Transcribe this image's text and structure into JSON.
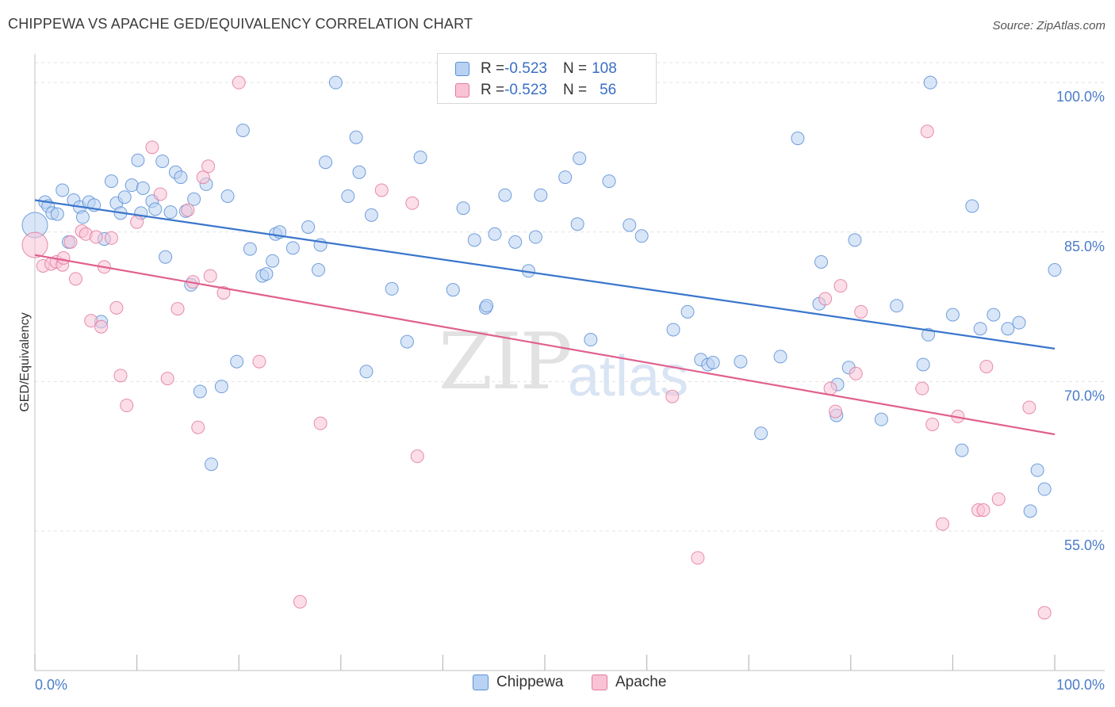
{
  "title": "CHIPPEWA VS APACHE GED/EQUIVALENCY CORRELATION CHART",
  "source": "Source: ZipAtlas.com",
  "watermark": {
    "zip": "ZIP",
    "atlas": "atlas"
  },
  "legend": {
    "rows": [
      {
        "r_label": "R = ",
        "r_value": "-0.523",
        "n_label": "N = ",
        "n_value": "108"
      },
      {
        "r_label": "R = ",
        "r_value": "-0.523",
        "n_label": "N = ",
        "n_value": "56"
      }
    ]
  },
  "colors": {
    "chippewa_fill": "#b9d2f3",
    "chippewa_stroke": "#5b8fd6",
    "chippewa_line": "#3a76cc",
    "apache_fill": "#f9c3d5",
    "apache_stroke": "#e27aa0",
    "apache_line": "#e0608e",
    "grid": "#e3e3e3",
    "axis_text": "#4a7cc9"
  },
  "chart_data": {
    "type": "scatter",
    "title": "CHIPPEWA VS APACHE GED/EQUIVALENCY CORRELATION CHART",
    "xlabel": "",
    "ylabel": "GED/Equivalency",
    "xlim": [
      0,
      100
    ],
    "ylim": [
      41,
      102
    ],
    "x_tick_labels": [
      "0.0%",
      "100.0%"
    ],
    "y_ticks": [
      55,
      70,
      85,
      100
    ],
    "y_tick_labels": [
      "55.0%",
      "70.0%",
      "85.0%",
      "100.0%"
    ],
    "grid": true,
    "legend_position": "top-center",
    "series": [
      {
        "name": "Chippewa",
        "r": -0.523,
        "n": 108,
        "trend": {
          "x": [
            0,
            100
          ],
          "y": [
            88.2,
            73.3
          ]
        },
        "points": [
          [
            0,
            85.7
          ],
          [
            1,
            88
          ],
          [
            1.3,
            87.6
          ],
          [
            1.7,
            86.9
          ],
          [
            2.2,
            86.8
          ],
          [
            2.7,
            89.2
          ],
          [
            3.3,
            84
          ],
          [
            3.8,
            88.2
          ],
          [
            4.4,
            87.5
          ],
          [
            4.7,
            86.5
          ],
          [
            5.3,
            88
          ],
          [
            5.8,
            87.7
          ],
          [
            6.5,
            76
          ],
          [
            6.8,
            84.3
          ],
          [
            7.5,
            90.1
          ],
          [
            8,
            87.9
          ],
          [
            8.4,
            86.9
          ],
          [
            8.8,
            88.5
          ],
          [
            9.5,
            89.7
          ],
          [
            10.1,
            92.2
          ],
          [
            10.4,
            86.9
          ],
          [
            10.6,
            89.4
          ],
          [
            11.5,
            88.1
          ],
          [
            11.8,
            87.3
          ],
          [
            12.5,
            92.1
          ],
          [
            12.8,
            82.5
          ],
          [
            13.3,
            87
          ],
          [
            13.8,
            91
          ],
          [
            14.3,
            90.5
          ],
          [
            14.8,
            87.1
          ],
          [
            15.3,
            79.7
          ],
          [
            15.6,
            88.3
          ],
          [
            16.2,
            69
          ],
          [
            16.8,
            89.8
          ],
          [
            17.3,
            61.7
          ],
          [
            18.3,
            69.5
          ],
          [
            18.9,
            88.6
          ],
          [
            19.8,
            72
          ],
          [
            20.4,
            95.2
          ],
          [
            21.1,
            83.3
          ],
          [
            22.3,
            80.6
          ],
          [
            22.7,
            80.8
          ],
          [
            23.3,
            82.1
          ],
          [
            23.6,
            84.8
          ],
          [
            24,
            85
          ],
          [
            25.3,
            83.4
          ],
          [
            26.8,
            85.5
          ],
          [
            27.8,
            81.2
          ],
          [
            28,
            83.7
          ],
          [
            28.5,
            92
          ],
          [
            29.5,
            100
          ],
          [
            30.7,
            88.6
          ],
          [
            31.5,
            94.5
          ],
          [
            31.8,
            91
          ],
          [
            32.5,
            71
          ],
          [
            33,
            86.7
          ],
          [
            35,
            79.3
          ],
          [
            36.5,
            74
          ],
          [
            37.8,
            92.5
          ],
          [
            41,
            79.2
          ],
          [
            42,
            87.4
          ],
          [
            43.1,
            84.2
          ],
          [
            44.2,
            77.4
          ],
          [
            44.3,
            77.6
          ],
          [
            45.1,
            84.8
          ],
          [
            46.1,
            88.7
          ],
          [
            47.1,
            84
          ],
          [
            48.4,
            81.1
          ],
          [
            49.1,
            84.5
          ],
          [
            49.6,
            88.7
          ],
          [
            52,
            90.5
          ],
          [
            53.2,
            85.8
          ],
          [
            53.4,
            92.4
          ],
          [
            54.5,
            74.2
          ],
          [
            56.3,
            90.1
          ],
          [
            58.3,
            85.7
          ],
          [
            59.5,
            84.6
          ],
          [
            62.6,
            75.2
          ],
          [
            64,
            77
          ],
          [
            65.3,
            72.2
          ],
          [
            66,
            71.7
          ],
          [
            66.5,
            71.9
          ],
          [
            69.2,
            72
          ],
          [
            71.2,
            64.8
          ],
          [
            73.1,
            72.5
          ],
          [
            74.8,
            94.4
          ],
          [
            76.9,
            77.8
          ],
          [
            77.1,
            82
          ],
          [
            78.6,
            66.6
          ],
          [
            78.7,
            69.7
          ],
          [
            79.8,
            71.4
          ],
          [
            80.4,
            84.2
          ],
          [
            83,
            66.2
          ],
          [
            84.5,
            77.6
          ],
          [
            87.1,
            71.7
          ],
          [
            87.6,
            74.7
          ],
          [
            87.8,
            100
          ],
          [
            90,
            76.7
          ],
          [
            90.9,
            63.1
          ],
          [
            91.9,
            87.6
          ],
          [
            92.7,
            75.3
          ],
          [
            94,
            76.7
          ],
          [
            95.4,
            75.3
          ],
          [
            96.5,
            75.9
          ],
          [
            97.6,
            57
          ],
          [
            98.3,
            61.1
          ],
          [
            99,
            59.2
          ],
          [
            100,
            81.2
          ]
        ]
      },
      {
        "name": "Apache",
        "r": -0.523,
        "n": 56,
        "trend": {
          "x": [
            0,
            100
          ],
          "y": [
            82.7,
            64.7
          ]
        },
        "points": [
          [
            0,
            83.7
          ],
          [
            0.8,
            81.6
          ],
          [
            1.6,
            81.8
          ],
          [
            2.1,
            82
          ],
          [
            2.7,
            81.7
          ],
          [
            2.8,
            82.4
          ],
          [
            3.5,
            84
          ],
          [
            4,
            80.3
          ],
          [
            4.6,
            85.1
          ],
          [
            5,
            84.8
          ],
          [
            5.5,
            76.1
          ],
          [
            6,
            84.5
          ],
          [
            6.5,
            75.5
          ],
          [
            6.8,
            81.5
          ],
          [
            7.5,
            84.4
          ],
          [
            8,
            77.4
          ],
          [
            8.4,
            70.6
          ],
          [
            9,
            67.6
          ],
          [
            10,
            86
          ],
          [
            11.5,
            93.5
          ],
          [
            12.3,
            88.8
          ],
          [
            13,
            70.3
          ],
          [
            14,
            77.3
          ],
          [
            15,
            87.2
          ],
          [
            15.5,
            80
          ],
          [
            16,
            65.4
          ],
          [
            16.5,
            90.5
          ],
          [
            17,
            91.6
          ],
          [
            17.2,
            80.6
          ],
          [
            18.5,
            78.9
          ],
          [
            20,
            100
          ],
          [
            22,
            72
          ],
          [
            26,
            47.9
          ],
          [
            28,
            65.8
          ],
          [
            34,
            89.2
          ],
          [
            37,
            87.9
          ],
          [
            37.5,
            62.5
          ],
          [
            65,
            52.3
          ],
          [
            77.5,
            78.3
          ],
          [
            78,
            69.3
          ],
          [
            78.5,
            67
          ],
          [
            79,
            79.6
          ],
          [
            80.5,
            70.8
          ],
          [
            81,
            77
          ],
          [
            87,
            69.3
          ],
          [
            87.5,
            95.1
          ],
          [
            88,
            65.7
          ],
          [
            89,
            55.7
          ],
          [
            90.5,
            66.5
          ],
          [
            92.5,
            57.1
          ],
          [
            93,
            57.1
          ],
          [
            93.3,
            71.5
          ],
          [
            94.5,
            58.2
          ],
          [
            97.5,
            67.4
          ],
          [
            99,
            46.8
          ],
          [
            62.5,
            68.5
          ]
        ]
      }
    ]
  }
}
